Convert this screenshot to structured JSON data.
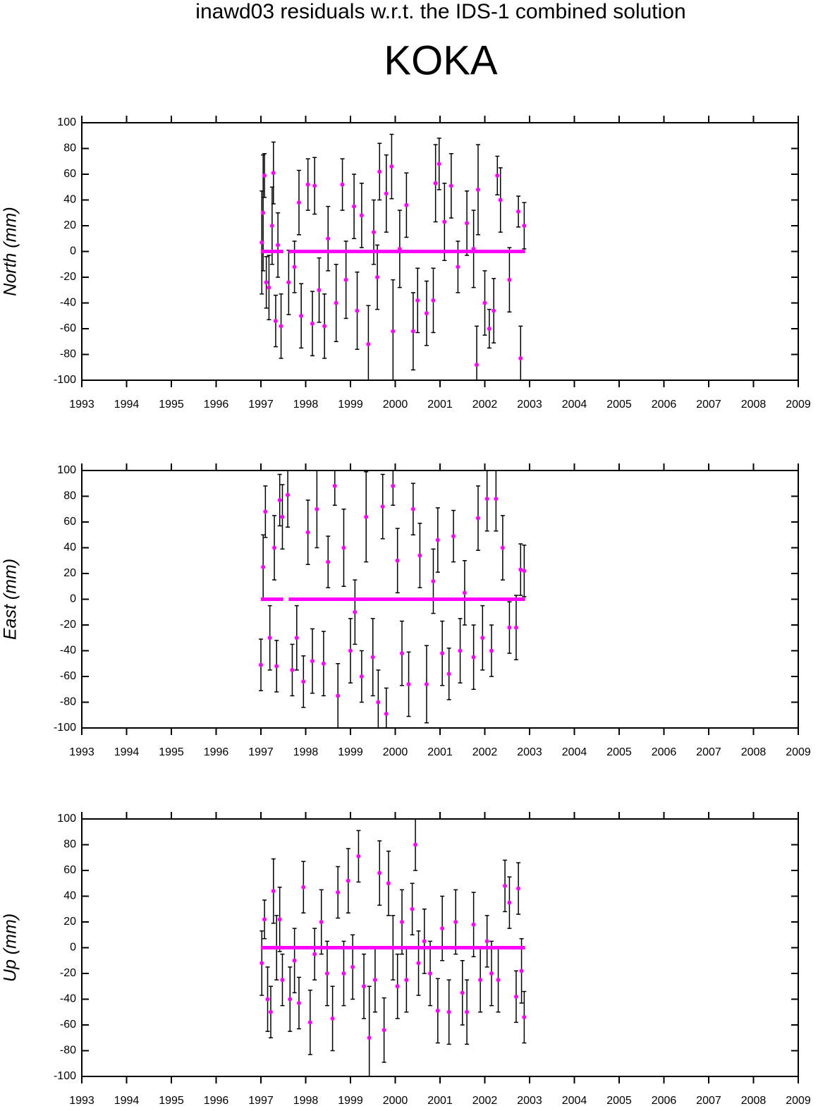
{
  "header": {
    "title": "inawd03 residuals w.r.t. the IDS-1 combined solution",
    "station": "KOKA"
  },
  "chart_data": [
    {
      "type": "scatter",
      "y_label": "North (mm)",
      "xlim": [
        1993,
        2009
      ],
      "xticks": [
        1993,
        1994,
        1995,
        1996,
        1997,
        1998,
        1999,
        2000,
        2001,
        2002,
        2003,
        2004,
        2005,
        2006,
        2007,
        2008,
        2009
      ],
      "ylim": [
        -100,
        100
      ],
      "yticks": [
        -100,
        -80,
        -60,
        -40,
        -20,
        0,
        20,
        40,
        60,
        80,
        100
      ],
      "point_color": "#ff00ff",
      "error_color": "#000000",
      "x": [
        1997.02,
        1997.05,
        1997.08,
        1997.12,
        1997.18,
        1997.25,
        1997.28,
        1997.33,
        1997.38,
        1997.45,
        1997.62,
        1997.75,
        1997.85,
        1997.9,
        1998.05,
        1998.15,
        1998.2,
        1998.3,
        1998.42,
        1998.5,
        1998.68,
        1998.82,
        1998.9,
        1999.08,
        1999.15,
        1999.25,
        1999.4,
        1999.52,
        1999.6,
        1999.65,
        1999.8,
        1999.92,
        1999.95,
        2000.1,
        2000.25,
        2000.4,
        2000.5,
        2000.7,
        2000.85,
        2000.9,
        2000.98,
        2001.1,
        2001.25,
        2001.4,
        2001.6,
        2001.75,
        2001.82,
        2001.85,
        2002.0,
        2002.1,
        2002.2,
        2002.28,
        2002.35,
        2002.55,
        2002.75,
        2002.8,
        2002.88
      ],
      "values": [
        7,
        30,
        59,
        -24,
        -28,
        20,
        61,
        -54,
        5,
        -58,
        -24,
        -12,
        38,
        -50,
        52,
        -56,
        51,
        -30,
        -58,
        10,
        -40,
        52,
        -22,
        35,
        -46,
        28,
        -72,
        15,
        -20,
        62,
        45,
        66,
        -62,
        2,
        36,
        -62,
        -38,
        -48,
        -38,
        53,
        68,
        23,
        51,
        -12,
        22,
        2,
        -88,
        48,
        -40,
        -60,
        -46,
        59,
        40,
        -22,
        31,
        -83,
        20
      ],
      "errors": [
        40,
        45,
        17,
        20,
        25,
        30,
        24,
        20,
        25,
        25,
        25,
        20,
        25,
        25,
        20,
        25,
        22,
        25,
        25,
        25,
        30,
        20,
        30,
        25,
        30,
        25,
        30,
        25,
        25,
        22,
        30,
        25,
        40,
        30,
        25,
        30,
        25,
        25,
        25,
        30,
        20,
        30,
        25,
        20,
        25,
        30,
        30,
        35,
        25,
        15,
        25,
        15,
        25,
        25,
        12,
        25,
        18
      ],
      "model": {
        "x": [
          1997.0,
          1997.5,
          1997.55,
          1997.62,
          2002.9
        ],
        "values": [
          0,
          0,
          null,
          0,
          0
        ]
      }
    },
    {
      "type": "scatter",
      "y_label": "East (mm)",
      "xlim": [
        1993,
        2009
      ],
      "xticks": [
        1993,
        1994,
        1995,
        1996,
        1997,
        1998,
        1999,
        2000,
        2001,
        2002,
        2003,
        2004,
        2005,
        2006,
        2007,
        2008,
        2009
      ],
      "ylim": [
        -100,
        100
      ],
      "yticks": [
        -100,
        -80,
        -60,
        -40,
        -20,
        0,
        20,
        40,
        60,
        80,
        100
      ],
      "point_color": "#ff00ff",
      "error_color": "#000000",
      "x": [
        1997.0,
        1997.05,
        1997.1,
        1997.2,
        1997.3,
        1997.35,
        1997.42,
        1997.48,
        1997.6,
        1997.7,
        1997.8,
        1997.95,
        1998.05,
        1998.15,
        1998.25,
        1998.4,
        1998.5,
        1998.65,
        1998.72,
        1998.85,
        1999.0,
        1999.1,
        1999.25,
        1999.35,
        1999.5,
        1999.62,
        1999.72,
        1999.8,
        1999.95,
        2000.05,
        2000.15,
        2000.3,
        2000.4,
        2000.55,
        2000.7,
        2000.85,
        2000.95,
        2001.05,
        2001.2,
        2001.3,
        2001.45,
        2001.55,
        2001.75,
        2001.85,
        2001.95,
        2002.05,
        2002.15,
        2002.25,
        2002.4,
        2002.55,
        2002.7,
        2002.8,
        2002.88
      ],
      "values": [
        -51,
        25,
        68,
        -30,
        40,
        -52,
        77,
        64,
        81,
        -55,
        -30,
        -64,
        52,
        -48,
        70,
        -50,
        29,
        88,
        -75,
        40,
        -40,
        -10,
        -60,
        64,
        -45,
        -80,
        72,
        -89,
        88,
        30,
        -42,
        -66,
        70,
        34,
        -66,
        14,
        46,
        -42,
        -58,
        49,
        -40,
        5,
        -45,
        63,
        -30,
        78,
        -40,
        78,
        40,
        -22,
        -22,
        23,
        22
      ],
      "errors": [
        20,
        25,
        20,
        25,
        25,
        20,
        20,
        25,
        25,
        20,
        25,
        20,
        25,
        25,
        30,
        25,
        20,
        15,
        25,
        30,
        25,
        25,
        20,
        35,
        30,
        25,
        25,
        20,
        15,
        25,
        25,
        25,
        20,
        25,
        30,
        25,
        25,
        25,
        20,
        20,
        25,
        25,
        25,
        25,
        25,
        25,
        20,
        25,
        25,
        20,
        25,
        20,
        20
      ],
      "model": {
        "x": [
          1997.0,
          1997.5,
          1997.55,
          1997.62,
          2002.9
        ],
        "values": [
          0,
          0,
          null,
          0,
          0
        ]
      }
    },
    {
      "type": "scatter",
      "y_label": "Up (mm)",
      "xlim": [
        1993,
        2009
      ],
      "xticks": [
        1993,
        1994,
        1995,
        1996,
        1997,
        1998,
        1999,
        2000,
        2001,
        2002,
        2003,
        2004,
        2005,
        2006,
        2007,
        2008,
        2009
      ],
      "ylim": [
        -100,
        100
      ],
      "yticks": [
        -100,
        -80,
        -60,
        -40,
        -20,
        0,
        20,
        40,
        60,
        80,
        100
      ],
      "point_color": "#ff00ff",
      "error_color": "#000000",
      "x": [
        1997.02,
        1997.08,
        1997.15,
        1997.22,
        1997.28,
        1997.35,
        1997.42,
        1997.48,
        1997.65,
        1997.75,
        1997.85,
        1997.95,
        1998.1,
        1998.2,
        1998.35,
        1998.48,
        1998.6,
        1998.72,
        1998.85,
        1998.95,
        1999.05,
        1999.18,
        1999.3,
        1999.42,
        1999.55,
        1999.65,
        1999.75,
        1999.85,
        1999.95,
        2000.05,
        2000.15,
        2000.25,
        2000.38,
        2000.45,
        2000.52,
        2000.65,
        2000.78,
        2000.95,
        2001.05,
        2001.2,
        2001.35,
        2001.5,
        2001.6,
        2001.75,
        2001.9,
        2002.05,
        2002.15,
        2002.3,
        2002.45,
        2002.55,
        2002.7,
        2002.75,
        2002.82,
        2002.88
      ],
      "values": [
        -12,
        22,
        -40,
        -50,
        44,
        0,
        22,
        -25,
        -40,
        -10,
        -43,
        47,
        -58,
        -5,
        20,
        -20,
        -55,
        43,
        -20,
        52,
        -15,
        71,
        -30,
        -70,
        -25,
        58,
        -64,
        50,
        0,
        -30,
        20,
        -25,
        30,
        80,
        -12,
        5,
        -20,
        -49,
        15,
        -50,
        20,
        -35,
        -50,
        18,
        -25,
        5,
        -20,
        -25,
        48,
        35,
        -38,
        46,
        -18,
        -54
      ],
      "errors": [
        25,
        15,
        25,
        20,
        25,
        25,
        25,
        20,
        25,
        25,
        20,
        20,
        25,
        20,
        25,
        25,
        25,
        20,
        25,
        25,
        25,
        20,
        25,
        40,
        25,
        25,
        25,
        25,
        25,
        25,
        25,
        25,
        20,
        20,
        25,
        25,
        25,
        25,
        25,
        25,
        25,
        25,
        25,
        25,
        25,
        20,
        25,
        25,
        20,
        20,
        20,
        20,
        25,
        20
      ],
      "model": {
        "x": [
          1997.0,
          2002.9
        ],
        "values": [
          0,
          0
        ]
      }
    }
  ]
}
